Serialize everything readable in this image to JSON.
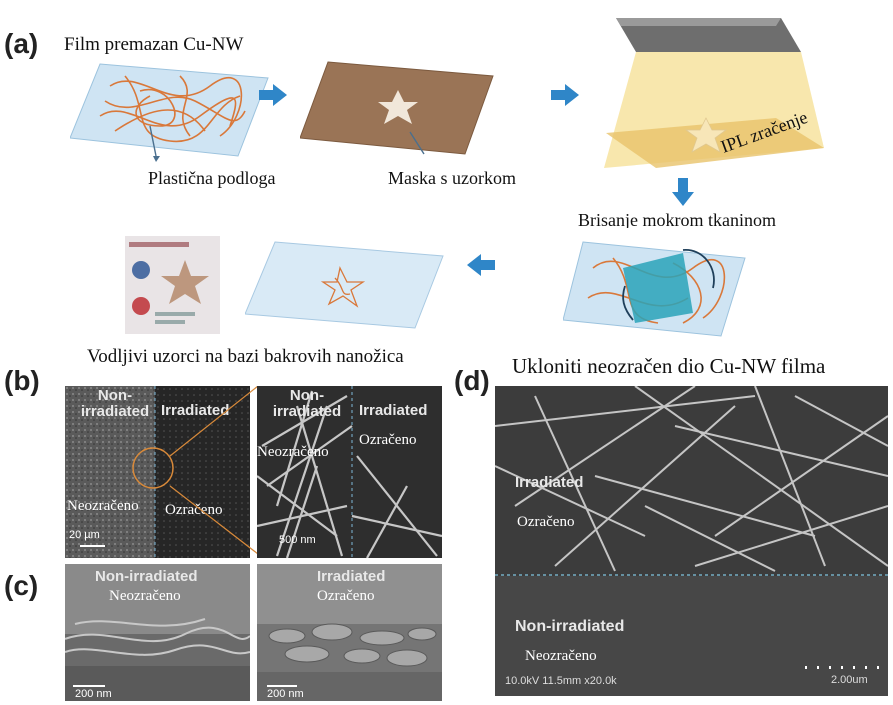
{
  "panel_a": {
    "letter": "(a)",
    "title_cuNW_film": "Film premazan Cu-NW",
    "label_substrate": "Plastična podloga",
    "label_mask": "Maska s uzorkom",
    "label_ipl": "IPL zračenje",
    "label_wipe": "Brisanje mokrom tkaninom",
    "label_patterns": "Vodljivi uzorci na bazi bakrovih nanožica",
    "label_remove": "Ukloniti neozračen dio Cu-NW filma"
  },
  "panel_b": {
    "letter": "(b)",
    "left_non_irr_en": "Non-\nirradiated",
    "left_irr_en": "Irradiated",
    "left_non_irr_hr": "Neozračeno",
    "left_irr_hr": "Ozračeno",
    "left_scale": "20 µm",
    "right_non_irr_en": "Non-\nirradiated",
    "right_irr_en": "Irradiated",
    "right_non_irr_hr": "Neozračeno",
    "right_irr_hr": "Ozračeno",
    "right_scale": "500 nm"
  },
  "panel_c": {
    "letter": "(c)",
    "left_en": "Non-irradiated",
    "left_hr": "Neozračeno",
    "left_scale": "200 nm",
    "right_en": "Irradiated",
    "right_hr": "Ozračeno",
    "right_scale": "200 nm"
  },
  "panel_d": {
    "letter": "(d)",
    "irr_en": "Irradiated",
    "irr_hr": "Ozračeno",
    "non_irr_en": "Non-irradiated",
    "non_irr_hr": "Neozračeno",
    "sem_info": "10.0kV 11.5mm x20.0k",
    "scale": "2.00um"
  },
  "colors": {
    "arrow_blue": "#2f86c8",
    "nanowire_orange": "#d9783a",
    "film_brown": "#9a7456",
    "lamp_yellow": "#f3d46a"
  }
}
